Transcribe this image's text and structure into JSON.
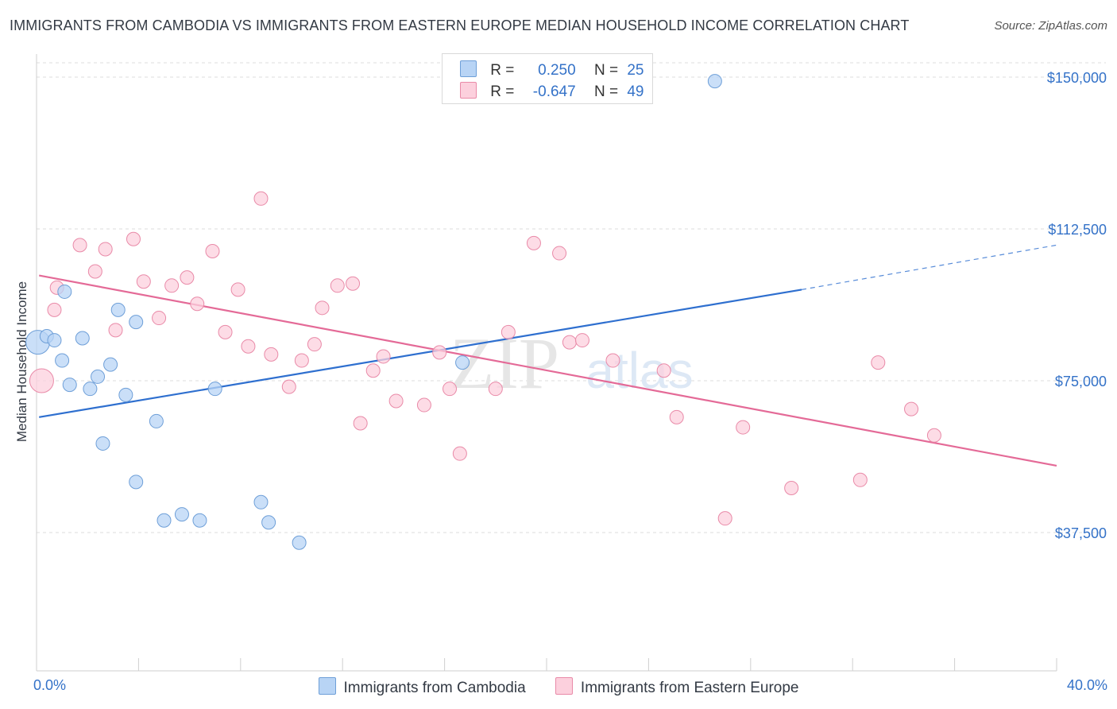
{
  "title": "IMMIGRANTS FROM CAMBODIA VS IMMIGRANTS FROM EASTERN EUROPE MEDIAN HOUSEHOLD INCOME CORRELATION CHART",
  "source": "Source: ZipAtlas.com",
  "watermark": {
    "zip": "ZIP",
    "atlas": "atlas"
  },
  "legend": {
    "r_label": "R =",
    "n_label": "N =",
    "entries": [
      {
        "r": "0.250",
        "n": "25",
        "color": "#b8d4f5",
        "stroke": "#6e9fd8"
      },
      {
        "r": "-0.647",
        "n": "49",
        "color": "#fcd0dd",
        "stroke": "#e98aa8"
      }
    ]
  },
  "bottom_legend": [
    "Immigrants from Cambodia",
    "Immigrants from Eastern Europe"
  ],
  "colors": {
    "blue_fill": "#b8d4f5",
    "blue_stroke": "#6e9fd8",
    "blue_line": "#2e6fcf",
    "pink_fill": "#fcd0dd",
    "pink_stroke": "#e98aa8",
    "pink_line": "#e46a97",
    "grid": "#dcdcdc",
    "axis_text": "#3472c8"
  },
  "chart_data": {
    "type": "scatter",
    "title": "IMMIGRANTS FROM CAMBODIA VS IMMIGRANTS FROM EASTERN EUROPE MEDIAN HOUSEHOLD INCOME CORRELATION CHART",
    "xlabel": "",
    "ylabel": "Median Household Income",
    "xlim": [
      0,
      40
    ],
    "ylim": [
      0,
      155000
    ],
    "x_tick_labels": [
      "0.0%",
      "40.0%"
    ],
    "y_ticks": [
      37500,
      75000,
      112500,
      150000
    ],
    "y_tick_labels": [
      "$37,500",
      "$75,000",
      "$112,500",
      "$150,000"
    ],
    "series": [
      {
        "name": "Immigrants from Cambodia",
        "r": 0.25,
        "n": 25,
        "trend": {
          "x0": 0.1,
          "y0": 66000,
          "x1": 30.0,
          "y1": 97500,
          "x_ext": 40.0,
          "y_ext": 108500
        },
        "points": [
          {
            "x": 0.05,
            "y": 84500,
            "size": "large"
          },
          {
            "x": 0.4,
            "y": 86000
          },
          {
            "x": 0.7,
            "y": 85000
          },
          {
            "x": 1.1,
            "y": 97000
          },
          {
            "x": 1.8,
            "y": 85500
          },
          {
            "x": 1.0,
            "y": 80000
          },
          {
            "x": 1.3,
            "y": 74000
          },
          {
            "x": 2.1,
            "y": 73000
          },
          {
            "x": 2.4,
            "y": 76000
          },
          {
            "x": 2.9,
            "y": 79000
          },
          {
            "x": 3.2,
            "y": 92500
          },
          {
            "x": 3.9,
            "y": 89500
          },
          {
            "x": 3.5,
            "y": 71500
          },
          {
            "x": 4.7,
            "y": 65000
          },
          {
            "x": 2.6,
            "y": 59500
          },
          {
            "x": 3.9,
            "y": 50000
          },
          {
            "x": 5.0,
            "y": 40500
          },
          {
            "x": 5.7,
            "y": 42000
          },
          {
            "x": 6.4,
            "y": 40500
          },
          {
            "x": 7.0,
            "y": 73000
          },
          {
            "x": 8.8,
            "y": 45000
          },
          {
            "x": 9.1,
            "y": 40000
          },
          {
            "x": 10.3,
            "y": 35000
          },
          {
            "x": 16.7,
            "y": 79500
          },
          {
            "x": 26.6,
            "y": 149000
          }
        ]
      },
      {
        "name": "Immigrants from Eastern Europe",
        "r": -0.647,
        "n": 49,
        "trend": {
          "x0": 0.1,
          "y0": 101000,
          "x1": 40.0,
          "y1": 54000
        },
        "points": [
          {
            "x": 0.2,
            "y": 75000,
            "size": "large"
          },
          {
            "x": 0.8,
            "y": 98000
          },
          {
            "x": 0.7,
            "y": 92500
          },
          {
            "x": 1.7,
            "y": 108500
          },
          {
            "x": 2.3,
            "y": 102000
          },
          {
            "x": 2.7,
            "y": 107500
          },
          {
            "x": 3.1,
            "y": 87500
          },
          {
            "x": 3.8,
            "y": 110000
          },
          {
            "x": 4.2,
            "y": 99500
          },
          {
            "x": 4.8,
            "y": 90500
          },
          {
            "x": 5.3,
            "y": 98500
          },
          {
            "x": 5.9,
            "y": 100500
          },
          {
            "x": 6.3,
            "y": 94000
          },
          {
            "x": 6.9,
            "y": 107000
          },
          {
            "x": 7.4,
            "y": 87000
          },
          {
            "x": 7.9,
            "y": 97500
          },
          {
            "x": 8.3,
            "y": 83500
          },
          {
            "x": 8.8,
            "y": 120000
          },
          {
            "x": 9.2,
            "y": 81500
          },
          {
            "x": 9.9,
            "y": 73500
          },
          {
            "x": 10.4,
            "y": 80000
          },
          {
            "x": 10.9,
            "y": 84000
          },
          {
            "x": 11.2,
            "y": 93000
          },
          {
            "x": 11.8,
            "y": 98500
          },
          {
            "x": 12.4,
            "y": 99000
          },
          {
            "x": 12.7,
            "y": 64500
          },
          {
            "x": 13.2,
            "y": 77500
          },
          {
            "x": 13.6,
            "y": 81000
          },
          {
            "x": 14.1,
            "y": 70000
          },
          {
            "x": 15.2,
            "y": 69000
          },
          {
            "x": 15.8,
            "y": 82000
          },
          {
            "x": 16.2,
            "y": 73000
          },
          {
            "x": 16.6,
            "y": 57000
          },
          {
            "x": 18.0,
            "y": 73000
          },
          {
            "x": 18.5,
            "y": 87000
          },
          {
            "x": 19.5,
            "y": 109000
          },
          {
            "x": 20.5,
            "y": 106500
          },
          {
            "x": 20.9,
            "y": 84500
          },
          {
            "x": 21.4,
            "y": 85000
          },
          {
            "x": 22.6,
            "y": 80000
          },
          {
            "x": 24.6,
            "y": 77500
          },
          {
            "x": 25.1,
            "y": 66000
          },
          {
            "x": 27.0,
            "y": 41000
          },
          {
            "x": 27.7,
            "y": 63500
          },
          {
            "x": 29.6,
            "y": 48500
          },
          {
            "x": 32.3,
            "y": 50500
          },
          {
            "x": 33.0,
            "y": 79500
          },
          {
            "x": 34.3,
            "y": 68000
          },
          {
            "x": 35.2,
            "y": 61500
          }
        ]
      }
    ]
  }
}
